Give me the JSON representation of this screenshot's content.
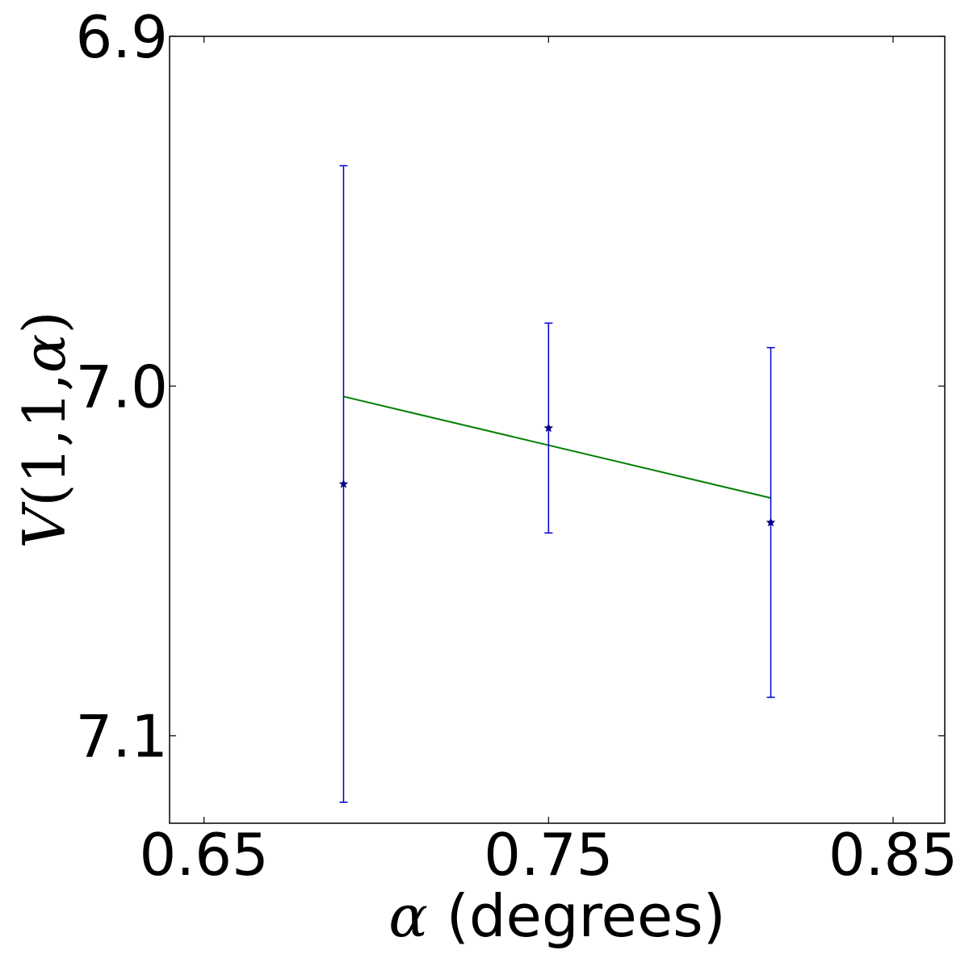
{
  "chart_data": {
    "type": "scatter",
    "xlabel": {
      "symbol": "α",
      "text": " (degrees)"
    },
    "ylabel": {
      "symbol": "V",
      "args": "(1,1,",
      "arg_symbol": "α",
      "close": ")"
    },
    "xlim": [
      0.64,
      0.865
    ],
    "ylim": [
      7.125,
      6.9
    ],
    "y_inverted": true,
    "x_ticks": [
      0.65,
      0.75,
      0.85
    ],
    "x_tick_labels": [
      "0.65",
      "0.75",
      "0.85"
    ],
    "y_ticks": [
      6.9,
      7.0,
      7.1
    ],
    "y_tick_labels": [
      "6.9",
      "7.0",
      "7.1"
    ],
    "grid": false,
    "series": [
      {
        "kind": "errorbar",
        "marker": "star",
        "color": "#000080",
        "errorbar_color": "#0000cc",
        "points": [
          {
            "x": 0.6905,
            "y": 7.028,
            "yerr": 0.091
          },
          {
            "x": 0.75,
            "y": 7.012,
            "yerr": 0.03
          },
          {
            "x": 0.8145,
            "y": 7.039,
            "yerr": 0.05
          }
        ]
      },
      {
        "kind": "line",
        "color": "#008000",
        "x": [
          0.6905,
          0.8145
        ],
        "y": [
          7.003,
          7.032
        ]
      }
    ]
  }
}
